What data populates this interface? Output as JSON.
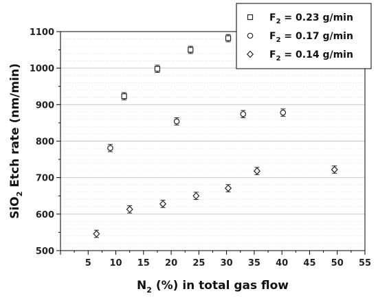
{
  "chart_data": {
    "type": "scatter",
    "title": "",
    "xlabel_main": "N",
    "xlabel_sub": "2",
    "xlabel_rest": " (%) in total gas flow",
    "ylabel_main": "SiO",
    "ylabel_sub": "2",
    "ylabel_rest": " Etch rate (nm/min)",
    "xlim": [
      0,
      55
    ],
    "ylim": [
      500,
      1100
    ],
    "xticks": [
      5,
      10,
      15,
      20,
      25,
      30,
      35,
      40,
      45,
      50,
      55
    ],
    "yticks": [
      500,
      600,
      700,
      800,
      900,
      1000,
      1100
    ],
    "grid": "horizontal-minor",
    "legend_position": "top-right",
    "series": [
      {
        "name": "F₂ = 0.23 g/min",
        "name_main": "F",
        "name_sub": "2",
        "name_rest": " = 0.23 g/min",
        "marker": "square",
        "points": [
          {
            "x": 11.5,
            "y": 923,
            "err": 10
          },
          {
            "x": 17.5,
            "y": 998,
            "err": 10
          },
          {
            "x": 23.5,
            "y": 1050,
            "err": 10
          },
          {
            "x": 30.3,
            "y": 1082,
            "err": 10
          }
        ]
      },
      {
        "name": "F₂ = 0.17 g/min",
        "name_main": "F",
        "name_sub": "2",
        "name_rest": " = 0.17 g/min",
        "marker": "circle",
        "points": [
          {
            "x": 9.0,
            "y": 781,
            "err": 10
          },
          {
            "x": 21.0,
            "y": 854,
            "err": 10
          },
          {
            "x": 33.0,
            "y": 874,
            "err": 10
          },
          {
            "x": 40.2,
            "y": 878,
            "err": 10
          }
        ]
      },
      {
        "name": "F₂ = 0.14 g/min",
        "name_main": "F",
        "name_sub": "2",
        "name_rest": " = 0.14 g/min",
        "marker": "diamond",
        "points": [
          {
            "x": 6.5,
            "y": 546,
            "err": 10
          },
          {
            "x": 12.5,
            "y": 613,
            "err": 10
          },
          {
            "x": 18.5,
            "y": 628,
            "err": 10
          },
          {
            "x": 24.5,
            "y": 650,
            "err": 10
          },
          {
            "x": 30.3,
            "y": 671,
            "err": 10
          },
          {
            "x": 35.5,
            "y": 718,
            "err": 10
          },
          {
            "x": 49.5,
            "y": 722,
            "err": 10
          }
        ]
      }
    ]
  }
}
